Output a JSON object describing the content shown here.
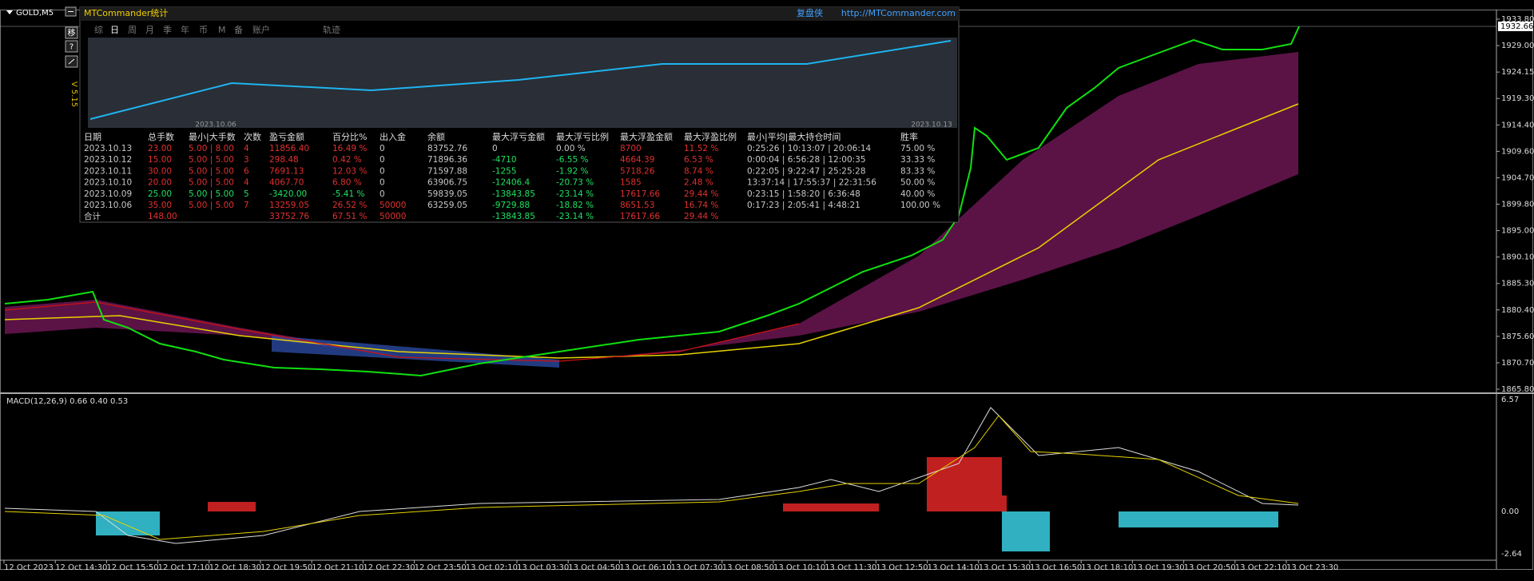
{
  "window": {
    "title": "GOLD,M5",
    "buttons": [
      "移",
      "?"
    ]
  },
  "panel": {
    "title": "MTCommander统计",
    "brand": "复盘侠",
    "url": "http://MTCommander.com",
    "tabs": [
      "综",
      "日",
      "周",
      "月",
      "季",
      "年",
      "币",
      "M",
      "备",
      "账户",
      "轨迹"
    ],
    "version": "V 5.15",
    "chart_dates": [
      "2023.10.06",
      "2023.10.13"
    ],
    "table": {
      "headers": [
        "日期",
        "总手数",
        "最小|大手数",
        "次数",
        "盈亏金额",
        "百分比%",
        "出入金",
        "余额",
        "最大浮亏金额",
        "最大浮亏比例",
        "最大浮盈金额",
        "最大浮盈比例",
        "最小|平均|最大持仓时间",
        "胜率"
      ],
      "rows": [
        [
          "2023.10.13",
          "23.00",
          "5.00 | 8.00",
          "4",
          "11856.40",
          "16.49 %",
          "0",
          "83752.76",
          "0",
          "0.00 %",
          "8700",
          "11.52 %",
          "0:25:26 | 10:13:07 | 20:06:14",
          "75.00 %"
        ],
        [
          "2023.10.12",
          "15.00",
          "5.00 | 5.00",
          "3",
          "298.48",
          "0.42 %",
          "0",
          "71896.36",
          "-4710",
          "-6.55 %",
          "4664.39",
          "6.53 %",
          "0:00:04 | 6:56:28 | 12:00:35",
          "33.33 %"
        ],
        [
          "2023.10.11",
          "30.00",
          "5.00 | 5.00",
          "6",
          "7691.13",
          "12.03 %",
          "0",
          "71597.88",
          "-1255",
          "-1.92 %",
          "5718.26",
          "8.74 %",
          "0:22:05 | 9:22:47 | 25:25:28",
          "83.33 %"
        ],
        [
          "2023.10.10",
          "20.00",
          "5.00 | 5.00",
          "4",
          "4067.70",
          "6.80 %",
          "0",
          "63906.75",
          "-12406.4",
          "-20.73 %",
          "1585",
          "2.48 %",
          "13:37:14 | 17:55:37 | 22:31:56",
          "50.00 %"
        ],
        [
          "2023.10.09",
          "25.00",
          "5.00 | 5.00",
          "5",
          "-3420.00",
          "-5.41 %",
          "0",
          "59839.05",
          "-13843.85",
          "-23.14 %",
          "17617.66",
          "29.44 %",
          "0:23:15 | 1:58:20 | 6:36:48",
          "40.00 %"
        ],
        [
          "2023.10.06",
          "35.00",
          "5.00 | 5.00",
          "7",
          "13259.05",
          "26.52 %",
          "50000",
          "63259.05",
          "-9729.88",
          "-18.82 %",
          "8651.53",
          "16.74 %",
          "0:17:23 | 2:05:41 | 4:48:21",
          "100.00 %"
        ]
      ],
      "total": {
        "label": "合计",
        "lots": "148.00",
        "pnl": "33752.76",
        "pct": "67.51 %",
        "deposit": "50000",
        "max_float_loss": "-13843.85",
        "max_float_loss_pct": "-23.14 %",
        "max_float_profit": "17617.66",
        "max_float_profit_pct": "29.44 %"
      }
    }
  },
  "price_axis": {
    "labels": [
      "1933.80",
      "1929.00",
      "1924.15",
      "1919.30",
      "1914.40",
      "1909.60",
      "1904.70",
      "1899.80",
      "1895.00",
      "1890.10",
      "1885.30",
      "1880.40",
      "1875.60",
      "1870.70",
      "1865.80"
    ],
    "current": "1932.66"
  },
  "macd": {
    "label": "MACD(12,26,9) 0.66 0.40 0.53",
    "axis": [
      "6.57",
      "0.00",
      "-2.64"
    ]
  },
  "time_axis": [
    "12 Oct 2023",
    "12 Oct 14:30",
    "12 Oct 15:50",
    "12 Oct 17:10",
    "12 Oct 18:30",
    "12 Oct 19:50",
    "12 Oct 21:10",
    "12 Oct 22:30",
    "12 Oct 23:50",
    "13 Oct 02:10",
    "13 Oct 03:30",
    "13 Oct 04:50",
    "13 Oct 06:10",
    "13 Oct 07:30",
    "13 Oct 08:50",
    "13 Oct 10:10",
    "13 Oct 11:30",
    "13 Oct 12:50",
    "13 Oct 14:10",
    "13 Oct 15:30",
    "13 Oct 16:50",
    "13 Oct 18:10",
    "13 Oct 19:30",
    "13 Oct 20:50",
    "13 Oct 22:10",
    "13 Oct 23:30"
  ]
}
